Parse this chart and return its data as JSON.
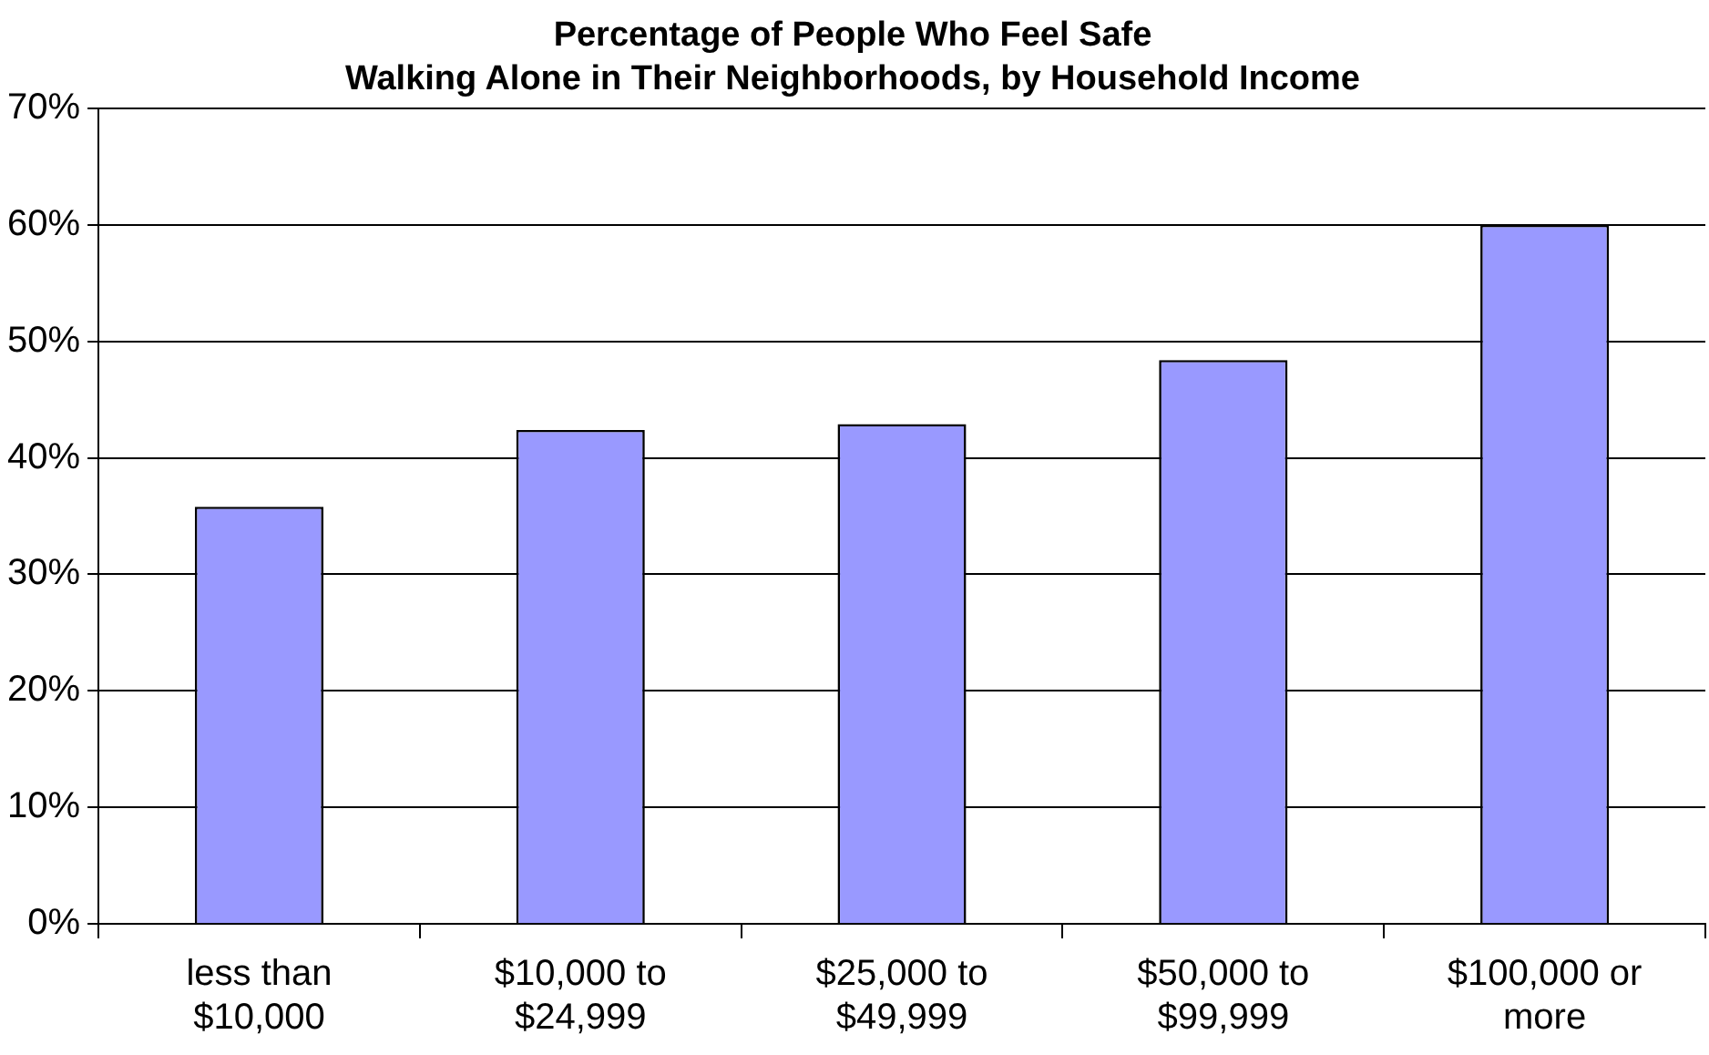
{
  "chart_data": {
    "type": "bar",
    "title": "Percentage of People Who Feel Safe Walking Alone in Their Neighborhoods, by Household Income",
    "categories": [
      "less than $10,000",
      "$10,000 to $24,999",
      "$25,000 to $49,999",
      "$50,000 to $99,999",
      "$100,000 or more"
    ],
    "values": [
      35.8,
      42.4,
      42.9,
      48.4,
      60
    ],
    "color": "#9999ff",
    "ylim": [
      0,
      70
    ],
    "yticks": [
      {
        "value": 0,
        "label": "0%"
      },
      {
        "value": 10,
        "label": "10%"
      },
      {
        "value": 20,
        "label": "20%"
      },
      {
        "value": 30,
        "label": "30%"
      },
      {
        "value": 40,
        "label": "40%"
      },
      {
        "value": 50,
        "label": "50%"
      },
      {
        "value": 60,
        "label": "60%"
      },
      {
        "value": 70,
        "label": "70%"
      }
    ],
    "grid": "y",
    "legend": false
  }
}
